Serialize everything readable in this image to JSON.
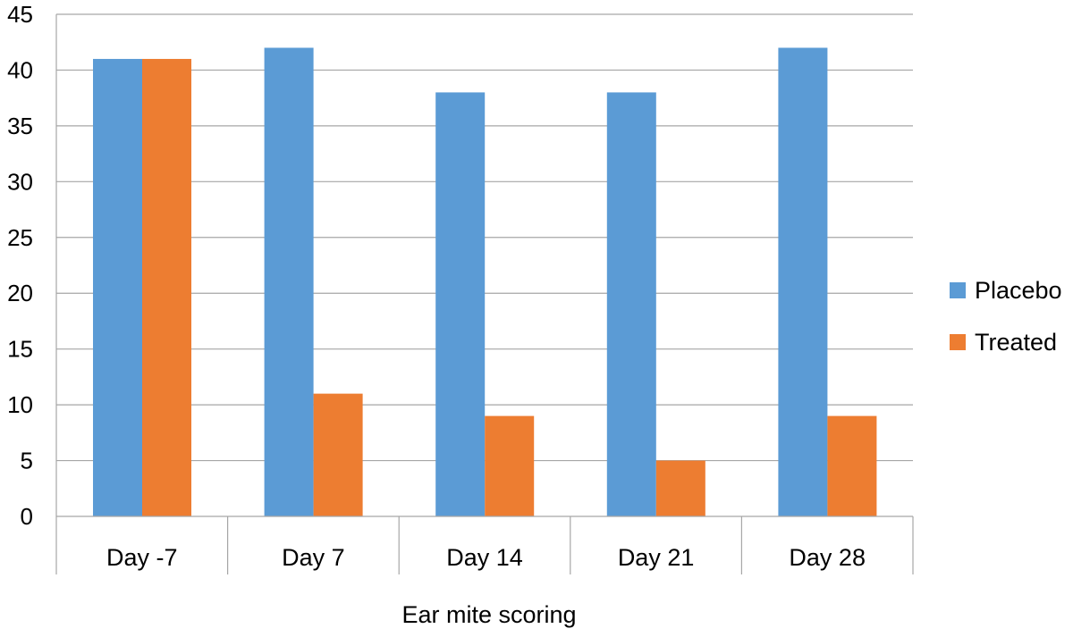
{
  "chart_data": {
    "type": "bar",
    "title": "",
    "xlabel": "Ear mite scoring",
    "ylabel": "",
    "categories": [
      "Day -7",
      "Day 7",
      "Day 14",
      "Day 21",
      "Day 28"
    ],
    "series": [
      {
        "name": "Placebo",
        "color": "#5b9bd5",
        "values": [
          41,
          42,
          38,
          38,
          42
        ]
      },
      {
        "name": "Treated",
        "color": "#ed7d31",
        "values": [
          41,
          11,
          9,
          5,
          9
        ]
      }
    ],
    "ylim": [
      0,
      45
    ],
    "yticks": [
      0,
      5,
      10,
      15,
      20,
      25,
      30,
      35,
      40,
      45
    ],
    "grid": true,
    "legend_position": "right"
  }
}
